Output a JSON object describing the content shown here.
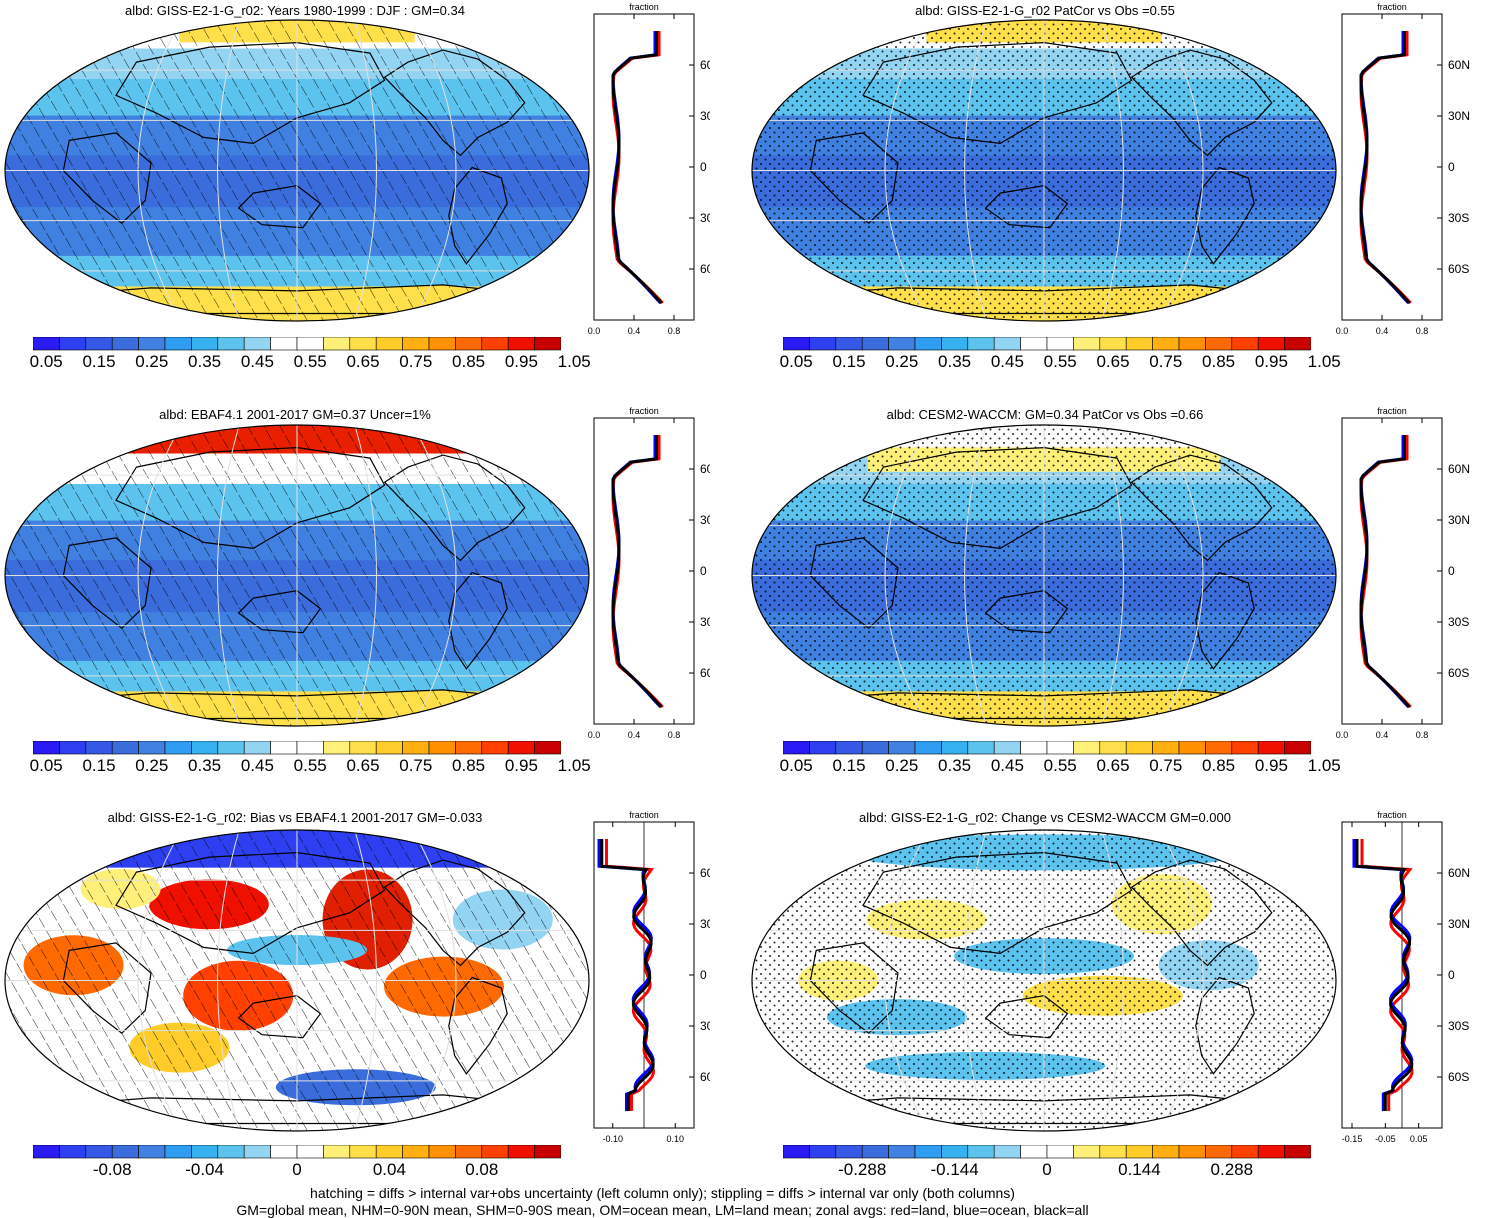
{
  "panels": [
    {
      "title": "albd: GISS-E2-1-G_r02: Years 1980-1999 : DJF : GM=0.34",
      "type": "mean",
      "hatch": "hatch"
    },
    {
      "title": "albd: GISS-E2-1-G_r02 PatCor vs Obs =0.55",
      "type": "mean",
      "hatch": "dots"
    },
    {
      "title": "albd: EBAF4.1 2001-2017 GM=0.37 Uncer=1%",
      "type": "obs",
      "hatch": "hatch"
    },
    {
      "title": "albd: CESM2-WACCM: GM=0.34 PatCor vs Obs =0.66",
      "type": "mean2",
      "hatch": "dots"
    },
    {
      "title": "albd: GISS-E2-1-G_r02: Bias vs EBAF4.1 2001-2017 GM=-0.033",
      "type": "bias",
      "hatch": "hatch"
    },
    {
      "title": "albd: GISS-E2-1-G_r02: Change vs CESM2-WACCM GM=0.000",
      "type": "change",
      "hatch": "dots"
    }
  ],
  "zonal": {
    "title": "fraction",
    "lat_labels": [
      "60N",
      "30N",
      "0",
      "30S",
      "60S"
    ],
    "lat_values": [
      60,
      30,
      0,
      -30,
      -60
    ],
    "xticks_abs": [
      "0.0",
      "0.4",
      "0.8"
    ],
    "xticks_bias": [
      "-0.10",
      "0.10"
    ],
    "xticks_change": [
      "-0.15",
      "-0.05",
      "0.05"
    ],
    "legend_colors": {
      "land": "#ff0000",
      "ocean": "#0000ff",
      "all": "#000000"
    }
  },
  "colorbars": {
    "abs_labels": [
      "0.05",
      "0.15",
      "0.25",
      "0.35",
      "0.45",
      "0.55",
      "0.65",
      "0.75",
      "0.85",
      "0.95",
      "1.05"
    ],
    "bias_labels": [
      "-0.08",
      "-0.04",
      "0",
      "0.04",
      "0.08"
    ],
    "change_labels": [
      "-0.288",
      "-0.144",
      "0",
      "0.144",
      "0.288"
    ],
    "colors": [
      "#2a1bf5",
      "#2d3ff0",
      "#3558e6",
      "#3a6cdc",
      "#3f80e0",
      "#2f9df2",
      "#35b1f0",
      "#5cc3ef",
      "#93d4f2",
      "#ffffff",
      "#ffffff",
      "#fff07a",
      "#ffe04a",
      "#ffcc2a",
      "#ffb010",
      "#ff9000",
      "#ff6a00",
      "#ff4000",
      "#f01000",
      "#c80000"
    ]
  },
  "footer": {
    "line1": "hatching = diffs > internal var+obs uncertainty (left column only); stippling = diffs > internal var only (both columns)",
    "line2": "GM=global mean, NHM=0-90N mean, SHM=0-90S mean, OM=ocean mean, LM=land mean; zonal avgs: red=land, blue=ocean, black=all"
  }
}
